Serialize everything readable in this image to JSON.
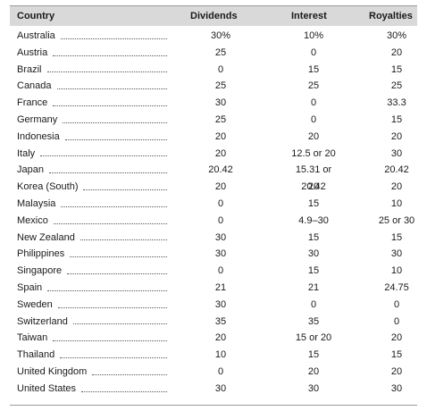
{
  "table": {
    "headers": {
      "country": "Country",
      "dividends": "Dividends",
      "interest": "Interest",
      "royalties": "Royalties"
    },
    "rows": [
      {
        "country": "Australia",
        "dividends": "30%",
        "interest": "10%",
        "royalties": "30%"
      },
      {
        "country": "Austria",
        "dividends": "25",
        "interest": "0",
        "royalties": "20"
      },
      {
        "country": "Brazil",
        "dividends": "0",
        "interest": "15",
        "royalties": "15"
      },
      {
        "country": "Canada",
        "dividends": "25",
        "interest": "25",
        "royalties": "25"
      },
      {
        "country": "France",
        "dividends": "30",
        "interest": "0",
        "royalties": "33.3"
      },
      {
        "country": "Germany",
        "dividends": "25",
        "interest": "0",
        "royalties": "15"
      },
      {
        "country": "Indonesia",
        "dividends": "20",
        "interest": "20",
        "royalties": "20"
      },
      {
        "country": "Italy",
        "dividends": "20",
        "interest": "12.5 or 20",
        "royalties": "30"
      },
      {
        "country": "Japan",
        "dividends": "20.42",
        "interest": "15.31 or 20.42",
        "royalties": "20.42"
      },
      {
        "country": "Korea (South)",
        "dividends": "20",
        "interest": "20",
        "royalties": "20"
      },
      {
        "country": "Malaysia",
        "dividends": "0",
        "interest": "15",
        "royalties": "10"
      },
      {
        "country": "Mexico",
        "dividends": "0",
        "interest": "4.9–30",
        "royalties": "25 or 30"
      },
      {
        "country": "New Zealand",
        "dividends": "30",
        "interest": "15",
        "royalties": "15"
      },
      {
        "country": "Philippines",
        "dividends": "30",
        "interest": "30",
        "royalties": "30"
      },
      {
        "country": "Singapore",
        "dividends": "0",
        "interest": "15",
        "royalties": "10"
      },
      {
        "country": "Spain",
        "dividends": "21",
        "interest": "21",
        "royalties": "24.75"
      },
      {
        "country": "Sweden",
        "dividends": "30",
        "interest": "0",
        "royalties": "0"
      },
      {
        "country": "Switzerland",
        "dividends": "35",
        "interest": "35",
        "royalties": "0"
      },
      {
        "country": "Taiwan",
        "dividends": "20",
        "interest": "15 or 20",
        "royalties": "20"
      },
      {
        "country": "Thailand",
        "dividends": "10",
        "interest": "15",
        "royalties": "15"
      },
      {
        "country": "United Kingdom",
        "dividends": "0",
        "interest": "20",
        "royalties": "20"
      },
      {
        "country": "United States",
        "dividends": "30",
        "interest": "30",
        "royalties": "30"
      }
    ]
  }
}
